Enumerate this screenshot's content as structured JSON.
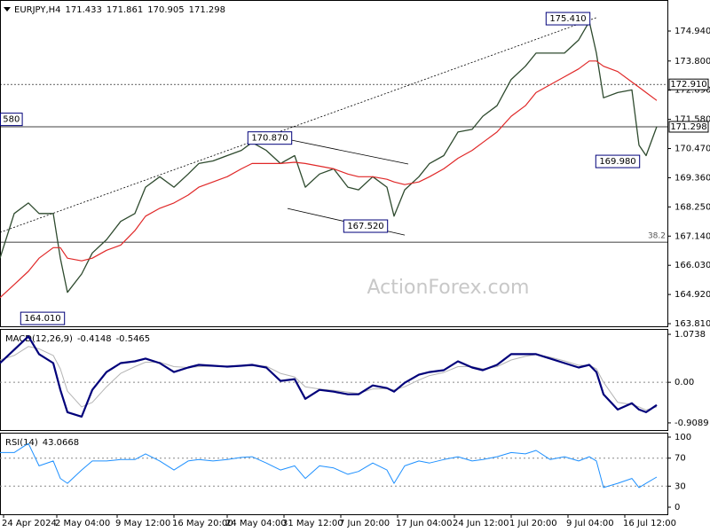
{
  "chart_data": [
    {
      "type": "line",
      "title": "EURJPY,H4",
      "ohlc": [
        171.433,
        171.861,
        170.905,
        171.298
      ],
      "watermark": "ActionForex.com",
      "x": [
        0,
        4,
        8,
        11,
        15,
        17,
        19,
        23,
        26,
        30,
        34,
        38,
        41,
        45,
        49,
        53,
        56,
        60,
        64,
        68,
        71,
        75,
        79,
        83,
        86,
        90,
        94,
        98,
        101,
        105,
        109,
        111,
        114,
        118,
        121,
        125,
        129,
        133,
        136,
        140,
        144,
        148,
        151,
        155,
        159,
        163,
        166,
        168,
        170,
        174,
        178,
        180,
        182,
        185
      ],
      "xlim": [
        0,
        188
      ],
      "ylim": [
        163.71,
        176.12
      ],
      "yticks": [
        {
          "value": 174.94,
          "label": "174.940"
        },
        {
          "value": 173.8,
          "label": "173.800"
        },
        {
          "value": 172.69,
          "label": "172.690"
        },
        {
          "value": 171.58,
          "label": "171.580"
        },
        {
          "value": 170.47,
          "label": "170.470"
        },
        {
          "value": 169.36,
          "label": "169.360"
        },
        {
          "value": 168.25,
          "label": "168.250"
        },
        {
          "value": 167.14,
          "label": "167.140"
        },
        {
          "value": 166.03,
          "label": "166.030"
        },
        {
          "value": 164.92,
          "label": "164.920"
        },
        {
          "value": 163.81,
          "label": "163.810"
        }
      ],
      "series": [
        {
          "color": "#2e4a2e",
          "width": 1.3,
          "values": [
            166.3,
            168.0,
            168.4,
            168.0,
            168.0,
            166.3,
            165.0,
            165.7,
            166.5,
            167.0,
            167.7,
            168.0,
            169.0,
            169.4,
            169.0,
            169.5,
            169.9,
            170.0,
            170.2,
            170.4,
            170.7,
            170.4,
            169.9,
            170.2,
            169.0,
            169.5,
            169.7,
            169.0,
            168.9,
            169.4,
            169.0,
            167.9,
            168.9,
            169.4,
            169.9,
            170.2,
            171.1,
            171.2,
            171.7,
            172.1,
            173.1,
            173.6,
            174.1,
            174.1,
            174.1,
            174.6,
            175.3,
            174.1,
            172.4,
            172.6,
            172.7,
            170.6,
            170.2,
            171.3
          ]
        },
        {
          "color": "#e02828",
          "width": 1.2,
          "values": [
            164.8,
            165.3,
            165.8,
            166.3,
            166.7,
            166.7,
            166.3,
            166.2,
            166.3,
            166.6,
            166.8,
            167.35,
            167.9,
            168.2,
            168.4,
            168.7,
            169.0,
            169.2,
            169.4,
            169.7,
            169.9,
            169.9,
            169.9,
            169.95,
            169.9,
            169.8,
            169.7,
            169.5,
            169.4,
            169.4,
            169.3,
            169.2,
            169.1,
            169.2,
            169.4,
            169.7,
            170.1,
            170.4,
            170.7,
            171.1,
            171.7,
            172.1,
            172.6,
            172.9,
            173.2,
            173.5,
            173.8,
            173.8,
            173.6,
            173.4,
            173.0,
            172.8,
            172.6,
            172.3
          ]
        }
      ],
      "hlines": [
        {
          "value": 172.91,
          "label": "172.910",
          "dashed": true
        },
        {
          "value": 171.298,
          "dashed": false
        }
      ],
      "fib_line": {
        "value": 38.2,
        "price": 166.91
      },
      "annotations": [
        {
          "value": 175.41,
          "label": "175.410",
          "x": 160
        },
        {
          "value": 170.87,
          "label": "170.870",
          "x": 76
        },
        {
          "value": 167.52,
          "label": "167.520",
          "x": 103
        },
        {
          "value": 164.01,
          "label": "164.010",
          "x": 12
        },
        {
          "value": 169.98,
          "label": "169.980",
          "x": 174
        },
        {
          "value": 171.58,
          "label": "580",
          "x": 2
        }
      ],
      "trendlines": [
        {
          "x": [
            0,
            168
          ],
          "y": [
            167.28,
            175.45
          ],
          "dashed": true
        },
        {
          "x": [
            81,
            115
          ],
          "y": [
            170.82,
            169.88
          ],
          "dashed": false
        },
        {
          "x": [
            81,
            114
          ],
          "y": [
            168.19,
            167.18
          ],
          "dashed": false
        }
      ]
    },
    {
      "type": "line",
      "title": "MACD(12,26,9)",
      "readings": [
        -0.4148,
        -0.5465
      ],
      "x": [
        0,
        4,
        8,
        11,
        15,
        17,
        19,
        23,
        26,
        30,
        34,
        38,
        41,
        45,
        49,
        53,
        56,
        60,
        64,
        68,
        71,
        75,
        79,
        83,
        86,
        90,
        94,
        98,
        101,
        105,
        109,
        111,
        114,
        118,
        121,
        125,
        129,
        133,
        136,
        140,
        144,
        148,
        151,
        155,
        159,
        163,
        166,
        168,
        170,
        174,
        178,
        180,
        182,
        185
      ],
      "xlim": [
        0,
        188
      ],
      "ylim": [
        -1.069,
        1.194
      ],
      "yticks": [
        1.0738,
        {
          "value": 0,
          "label": "0.00"
        },
        -0.9089
      ],
      "reference_lines": [
        0
      ],
      "series": [
        {
          "color": "#b4b4b4",
          "width": 1,
          "values": [
            0.5,
            0.6,
            0.8,
            0.75,
            0.6,
            0.3,
            -0.2,
            -0.55,
            -0.45,
            -0.1,
            0.2,
            0.35,
            0.45,
            0.45,
            0.35,
            0.33,
            0.35,
            0.36,
            0.36,
            0.36,
            0.37,
            0.36,
            0.2,
            0.12,
            -0.1,
            -0.15,
            -0.18,
            -0.22,
            -0.25,
            -0.15,
            -0.14,
            -0.17,
            -0.1,
            0.05,
            0.15,
            0.22,
            0.35,
            0.35,
            0.3,
            0.35,
            0.5,
            0.58,
            0.62,
            0.56,
            0.48,
            0.38,
            0.38,
            0.3,
            0.0,
            -0.45,
            -0.5,
            -0.55,
            -0.62,
            -0.55
          ]
        },
        {
          "color": "#00007a",
          "width": 2.2,
          "values": [
            0.43,
            0.73,
            1.03,
            0.63,
            0.43,
            -0.17,
            -0.67,
            -0.77,
            -0.17,
            0.23,
            0.43,
            0.47,
            0.53,
            0.43,
            0.23,
            0.33,
            0.39,
            0.37,
            0.35,
            0.37,
            0.39,
            0.33,
            0.03,
            0.07,
            -0.37,
            -0.17,
            -0.21,
            -0.27,
            -0.27,
            -0.07,
            -0.13,
            -0.21,
            -0.01,
            0.17,
            0.23,
            0.27,
            0.47,
            0.33,
            0.27,
            0.39,
            0.63,
            0.63,
            0.63,
            0.53,
            0.43,
            0.33,
            0.39,
            0.23,
            -0.27,
            -0.61,
            -0.47,
            -0.61,
            -0.67,
            -0.51
          ]
        }
      ]
    },
    {
      "type": "line",
      "title": "RSI(14)",
      "readings": [
        43.0668
      ],
      "x": [
        0,
        4,
        8,
        11,
        15,
        17,
        19,
        23,
        26,
        30,
        34,
        38,
        41,
        45,
        49,
        53,
        56,
        60,
        64,
        68,
        71,
        75,
        79,
        83,
        86,
        90,
        94,
        98,
        101,
        105,
        109,
        111,
        114,
        118,
        121,
        125,
        129,
        133,
        136,
        140,
        144,
        148,
        151,
        155,
        159,
        163,
        166,
        168,
        170,
        174,
        178,
        180,
        182,
        185
      ],
      "xlim": [
        0,
        188
      ],
      "ylim": [
        -10.1,
        106.3
      ],
      "yticks": [
        100,
        70,
        30,
        0
      ],
      "reference_lines": [
        70,
        30
      ],
      "xticks": [
        {
          "value": 1,
          "label": "24 Apr 2024"
        },
        {
          "value": 16,
          "label": "2 May 04:00"
        },
        {
          "value": 33,
          "label": "9 May 12:00"
        },
        {
          "value": 49,
          "label": "16 May 20:00"
        },
        {
          "value": 64,
          "label": "24 May 04:00"
        },
        {
          "value": 80,
          "label": "31 May 12:00"
        },
        {
          "value": 96,
          "label": "7 Jun 20:00"
        },
        {
          "value": 112,
          "label": "17 Jun 04:00"
        },
        {
          "value": 128,
          "label": "24 Jun 12:00"
        },
        {
          "value": 144,
          "label": "1 Jul 20:00"
        },
        {
          "value": 160,
          "label": "9 Jul 04:00"
        },
        {
          "value": 176,
          "label": "16 Jul 12:00"
        }
      ],
      "series": [
        {
          "color": "#1e90ff",
          "width": 1,
          "values": [
            78,
            78,
            91,
            59,
            66,
            41,
            34,
            53,
            66,
            66,
            68,
            68,
            76,
            66,
            53,
            66,
            68,
            66,
            68,
            71,
            72,
            63,
            53,
            59,
            41,
            59,
            56,
            47,
            51,
            63,
            53,
            34,
            59,
            66,
            63,
            68,
            72,
            66,
            68,
            72,
            78,
            76,
            81,
            68,
            72,
            66,
            72,
            66,
            28,
            34,
            41,
            28,
            34,
            43
          ]
        }
      ]
    }
  ]
}
